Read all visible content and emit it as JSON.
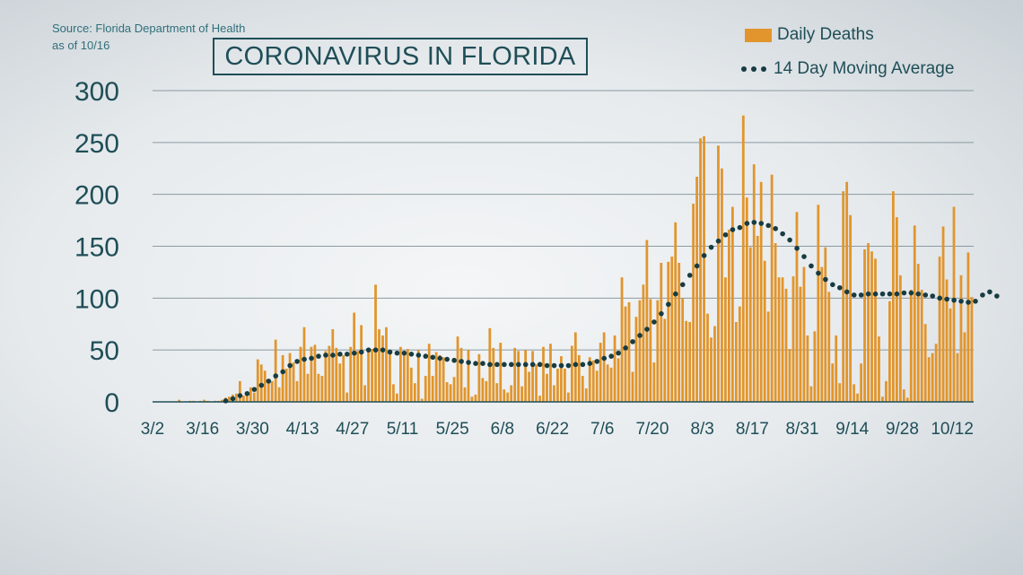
{
  "source": {
    "line1": "Source: Florida Department of Health",
    "line2": "as of 10/16"
  },
  "title": "CORONAVIRUS IN FLORIDA",
  "colors": {
    "bars": "#e1952c",
    "avg": "#173c42",
    "text": "#1f4e57"
  },
  "chart_data": {
    "type": "bar",
    "title": "CORONAVIRUS IN FLORIDA",
    "start_date": "3/2",
    "x_tick_labels": [
      "3/2",
      "3/16",
      "3/30",
      "4/13",
      "4/27",
      "5/11",
      "5/25",
      "6/8",
      "6/22",
      "7/6",
      "7/20",
      "8/3",
      "8/17",
      "8/31",
      "9/14",
      "9/28",
      "10/12"
    ],
    "ylim": [
      0,
      300
    ],
    "y_ticks": [
      0,
      50,
      100,
      150,
      200,
      250,
      300
    ],
    "grid": true,
    "legend_position": "top-right",
    "series": [
      {
        "name": "Daily Deaths",
        "type": "bar",
        "values": [
          0,
          0,
          0,
          0,
          0,
          0,
          0,
          2,
          0,
          0,
          1,
          1,
          0,
          1,
          2,
          1,
          0,
          1,
          1,
          2,
          4,
          5,
          7,
          8,
          20,
          6,
          10,
          14,
          9,
          41,
          36,
          30,
          22,
          20,
          60,
          14,
          45,
          32,
          47,
          38,
          20,
          53,
          72,
          27,
          53,
          55,
          27,
          25,
          49,
          54,
          70,
          52,
          37,
          45,
          9,
          53,
          86,
          49,
          74,
          16,
          50,
          51,
          113,
          70,
          64,
          72,
          48,
          17,
          8,
          53,
          46,
          51,
          33,
          18,
          50,
          3,
          25,
          56,
          25,
          48,
          45,
          43,
          19,
          17,
          24,
          63,
          52,
          14,
          50,
          5,
          7,
          46,
          23,
          20,
          71,
          52,
          18,
          57,
          12,
          9,
          16,
          52,
          49,
          15,
          50,
          29,
          49,
          36,
          6,
          53,
          27,
          56,
          16,
          32,
          44,
          32,
          9,
          54,
          67,
          45,
          25,
          13,
          43,
          40,
          30,
          57,
          67,
          36,
          33,
          64,
          42,
          120,
          92,
          96,
          29,
          82,
          98,
          113,
          156,
          99,
          38,
          98,
          134,
          80,
          135,
          140,
          173,
          134,
          100,
          78,
          77,
          191,
          217,
          254,
          256,
          85,
          62,
          73,
          247,
          225,
          120,
          166,
          188,
          77,
          92,
          276,
          197,
          149,
          229,
          160,
          212,
          136,
          87,
          219,
          153,
          120,
          120,
          109,
          51,
          121,
          183,
          111,
          130,
          64,
          15,
          68,
          190,
          130,
          149,
          106,
          37,
          64,
          18,
          203,
          212,
          180,
          17,
          8,
          37,
          147,
          153,
          145,
          138,
          63,
          5,
          20,
          97,
          203,
          178,
          122,
          12,
          4,
          108,
          170,
          133,
          108,
          75,
          43,
          47,
          56,
          140,
          169,
          118,
          90,
          188,
          47,
          122,
          67,
          144,
          101
        ]
      },
      {
        "name": "14 Day Moving Average",
        "type": "line-dotted",
        "values": [
          0,
          0,
          0,
          0,
          0,
          0,
          0,
          0,
          0,
          0,
          0,
          0,
          0,
          0,
          0,
          0,
          0,
          0,
          0,
          0,
          1,
          2,
          3,
          4,
          6,
          7,
          8,
          10,
          12,
          14,
          16,
          18,
          20,
          22,
          25,
          27,
          29,
          32,
          35,
          37,
          39,
          40,
          41,
          42,
          42,
          43,
          44,
          44,
          45,
          45,
          45,
          45,
          46,
          46,
          46,
          46,
          47,
          47,
          48,
          49,
          50,
          50,
          50,
          51,
          50,
          49,
          48,
          48,
          47,
          47,
          47,
          47,
          46,
          46,
          45,
          44,
          44,
          43,
          43,
          42,
          42,
          41,
          41,
          40,
          40,
          39,
          39,
          38,
          38,
          38,
          37,
          37,
          37,
          37,
          36,
          36,
          36,
          36,
          36,
          36,
          36,
          36,
          36,
          36,
          36,
          36,
          36,
          36,
          36,
          36,
          35,
          35,
          35,
          35,
          35,
          35,
          35,
          36,
          36,
          36,
          36,
          37,
          37,
          38,
          39,
          40,
          42,
          43,
          44,
          45,
          47,
          49,
          52,
          55,
          58,
          61,
          64,
          67,
          70,
          73,
          77,
          81,
          85,
          89,
          94,
          99,
          104,
          109,
          113,
          118,
          122,
          126,
          131,
          136,
          141,
          145,
          149,
          152,
          155,
          158,
          161,
          164,
          166,
          167,
          168,
          170,
          172,
          174,
          173,
          172,
          172,
          171,
          170,
          169,
          167,
          165,
          162,
          159,
          156,
          152,
          148,
          144,
          140,
          136,
          131,
          127,
          124,
          121,
          118,
          115,
          113,
          112,
          110,
          108,
          106,
          104,
          103,
          103,
          103,
          104,
          104,
          104,
          104,
          104,
          104,
          104,
          104,
          104,
          104,
          105,
          105,
          105,
          105,
          104,
          104,
          103,
          103,
          102,
          102,
          101,
          100,
          99,
          99,
          98,
          98,
          98,
          97,
          96,
          96,
          95,
          97,
          100,
          103,
          105,
          106,
          104,
          102
        ]
      }
    ]
  }
}
